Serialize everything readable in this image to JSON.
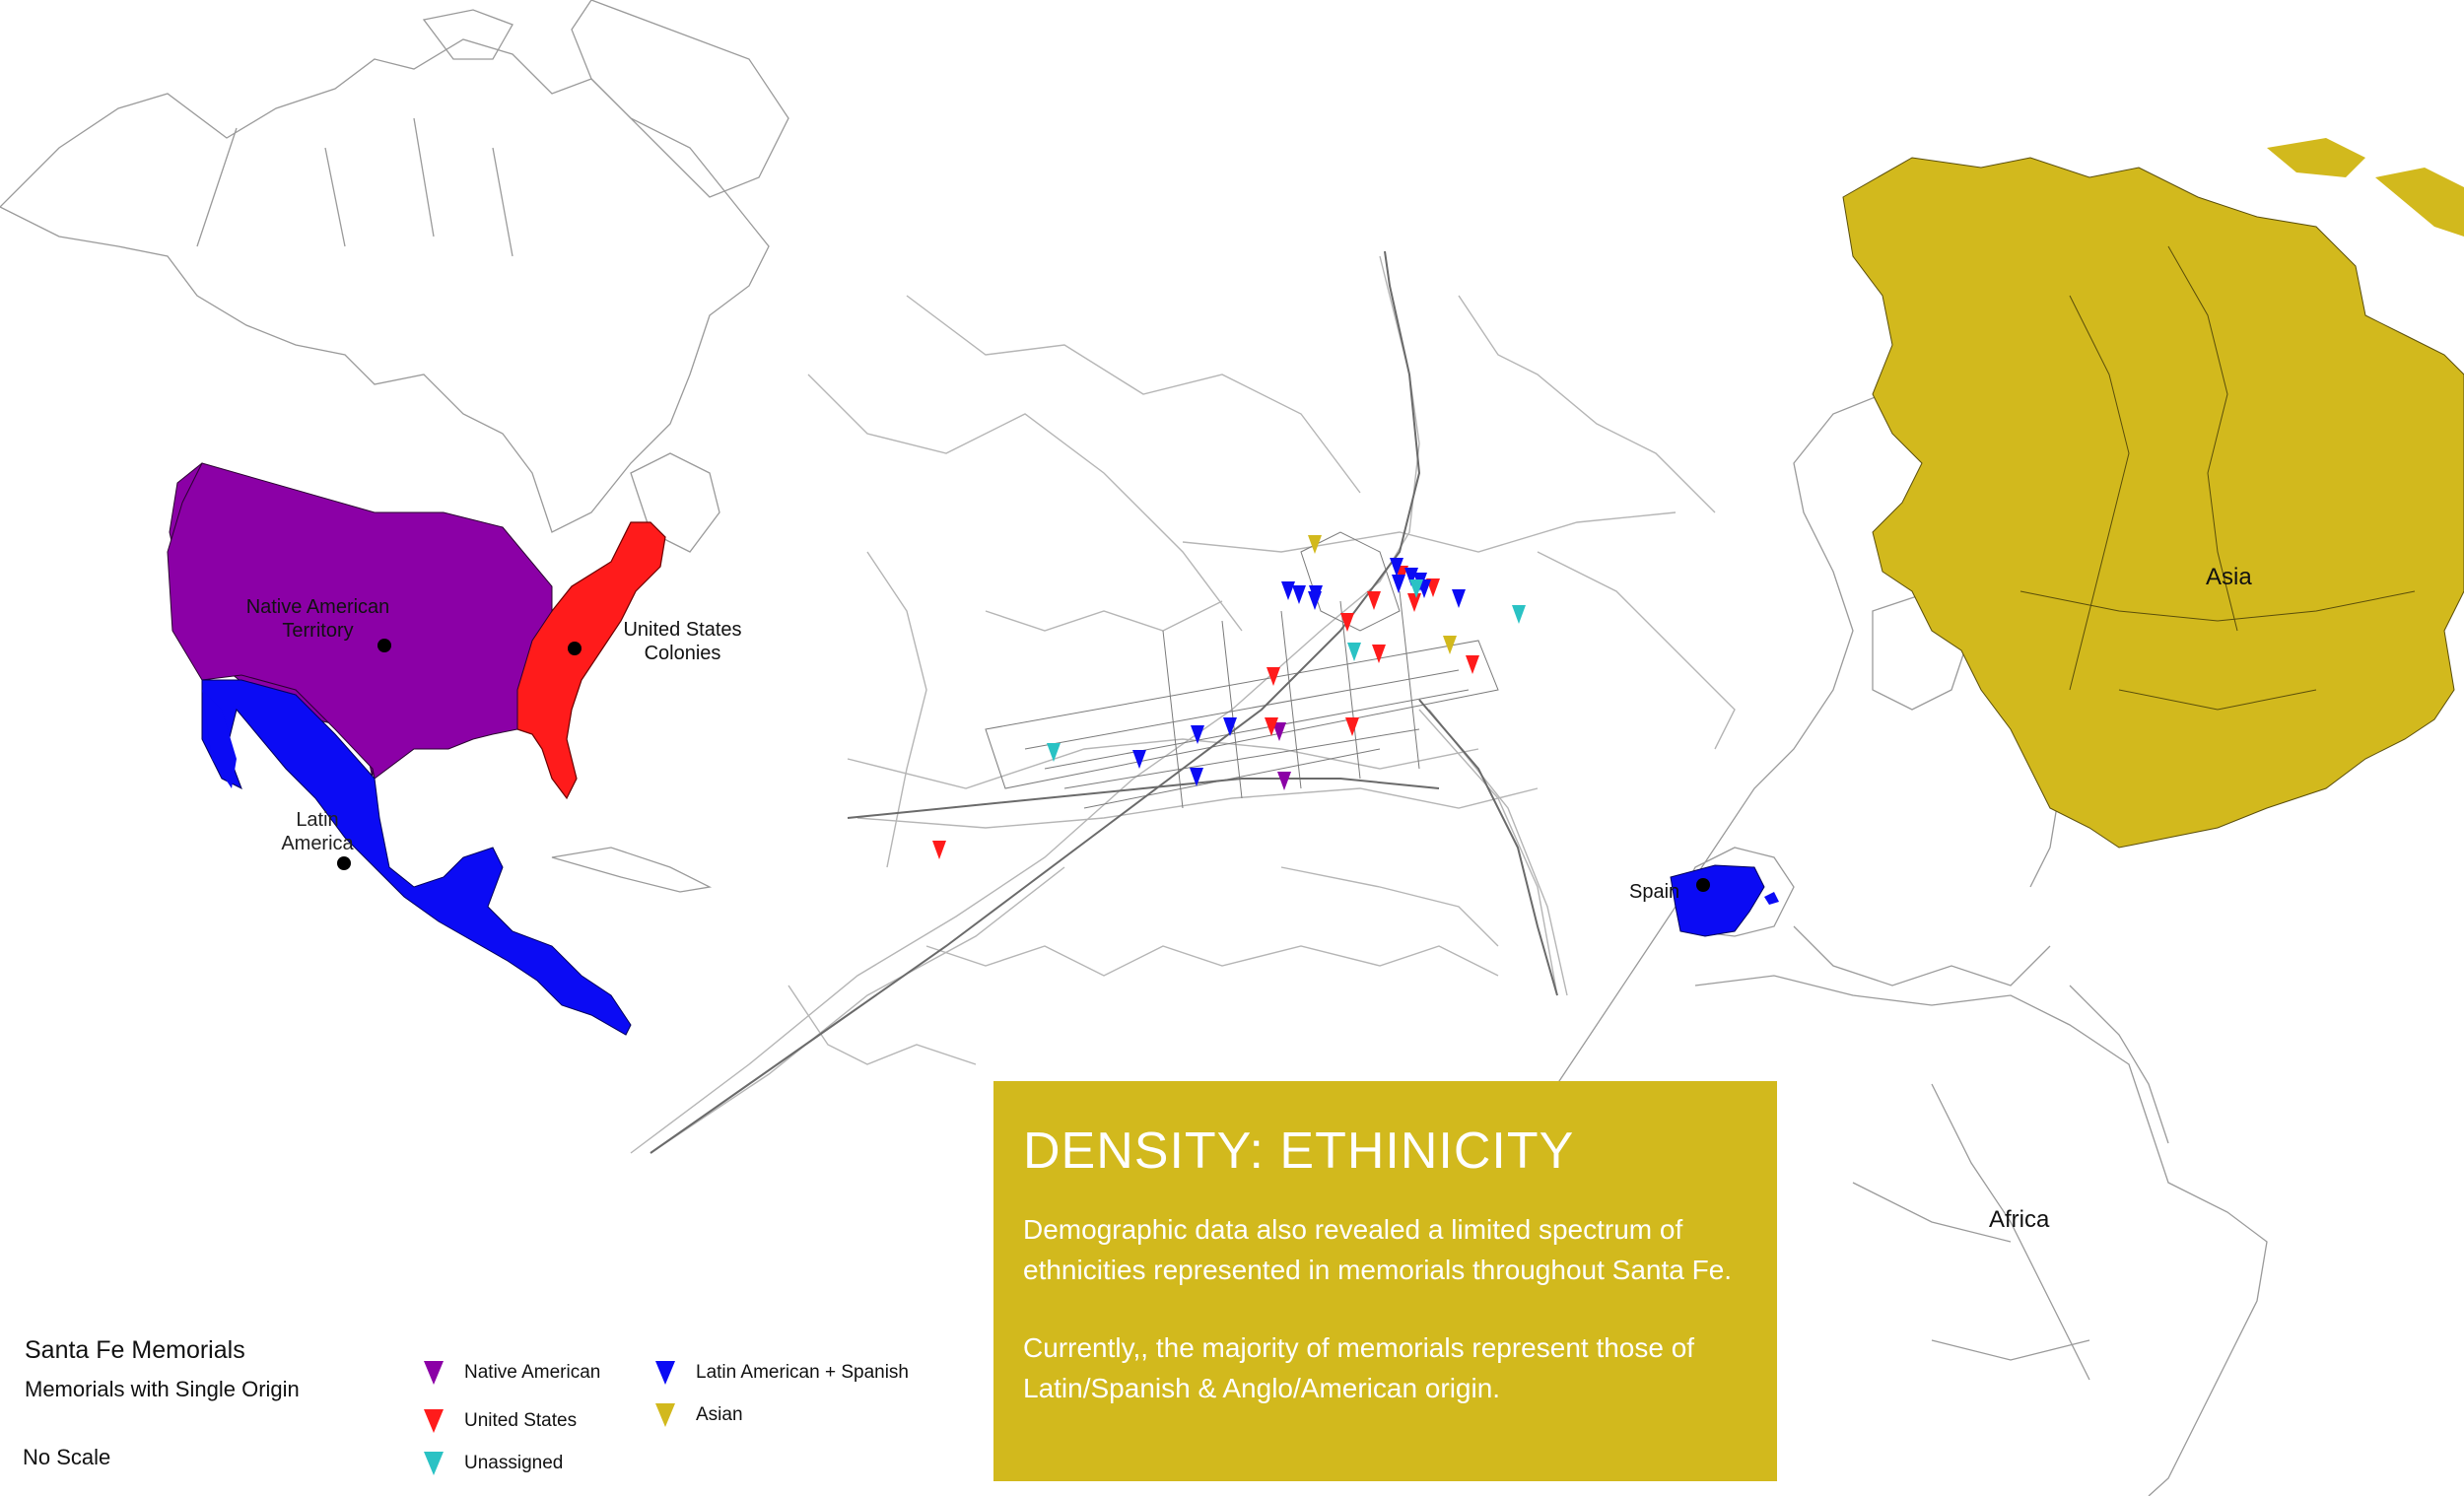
{
  "colors": {
    "native_american": "#8b00a6",
    "united_states": "#ff1b1b",
    "latin_american_spanish": "#0b0bf4",
    "asian": "#d2b91d",
    "unassigned": "#2ac2c4",
    "info_box": "#d2b91d"
  },
  "map": {
    "regions": {
      "native_american": "Native American Territory",
      "united_states": "United States Colonies",
      "latin_america": "Latin America",
      "spain": "Spain",
      "asia": "Asia",
      "africa": "Africa"
    },
    "marker_counts": {
      "native_american": 2,
      "united_states": 11,
      "latin_american_spanish": 14,
      "asian": 2,
      "unassigned": 4
    }
  },
  "info": {
    "title": "DENSITY: ETHINICITY",
    "paragraph1": "Demographic data also revealed a limited spectrum of ethnicities represented in memorials throughout Santa Fe.",
    "paragraph2": "Currently,, the majority of memorials represent those of Latin/Spanish & Anglo/American origin."
  },
  "footer": {
    "title": "Santa Fe Memorials",
    "subtitle": "Memorials with Single Origin",
    "scale": "No Scale"
  },
  "legend": [
    {
      "label": "Native American",
      "color_key": "native_american"
    },
    {
      "label": "United States",
      "color_key": "united_states"
    },
    {
      "label": "Unassigned",
      "color_key": "unassigned"
    },
    {
      "label": "Latin American + Spanish",
      "color_key": "latin_american_spanish"
    },
    {
      "label": "Asian",
      "color_key": "asian"
    }
  ]
}
